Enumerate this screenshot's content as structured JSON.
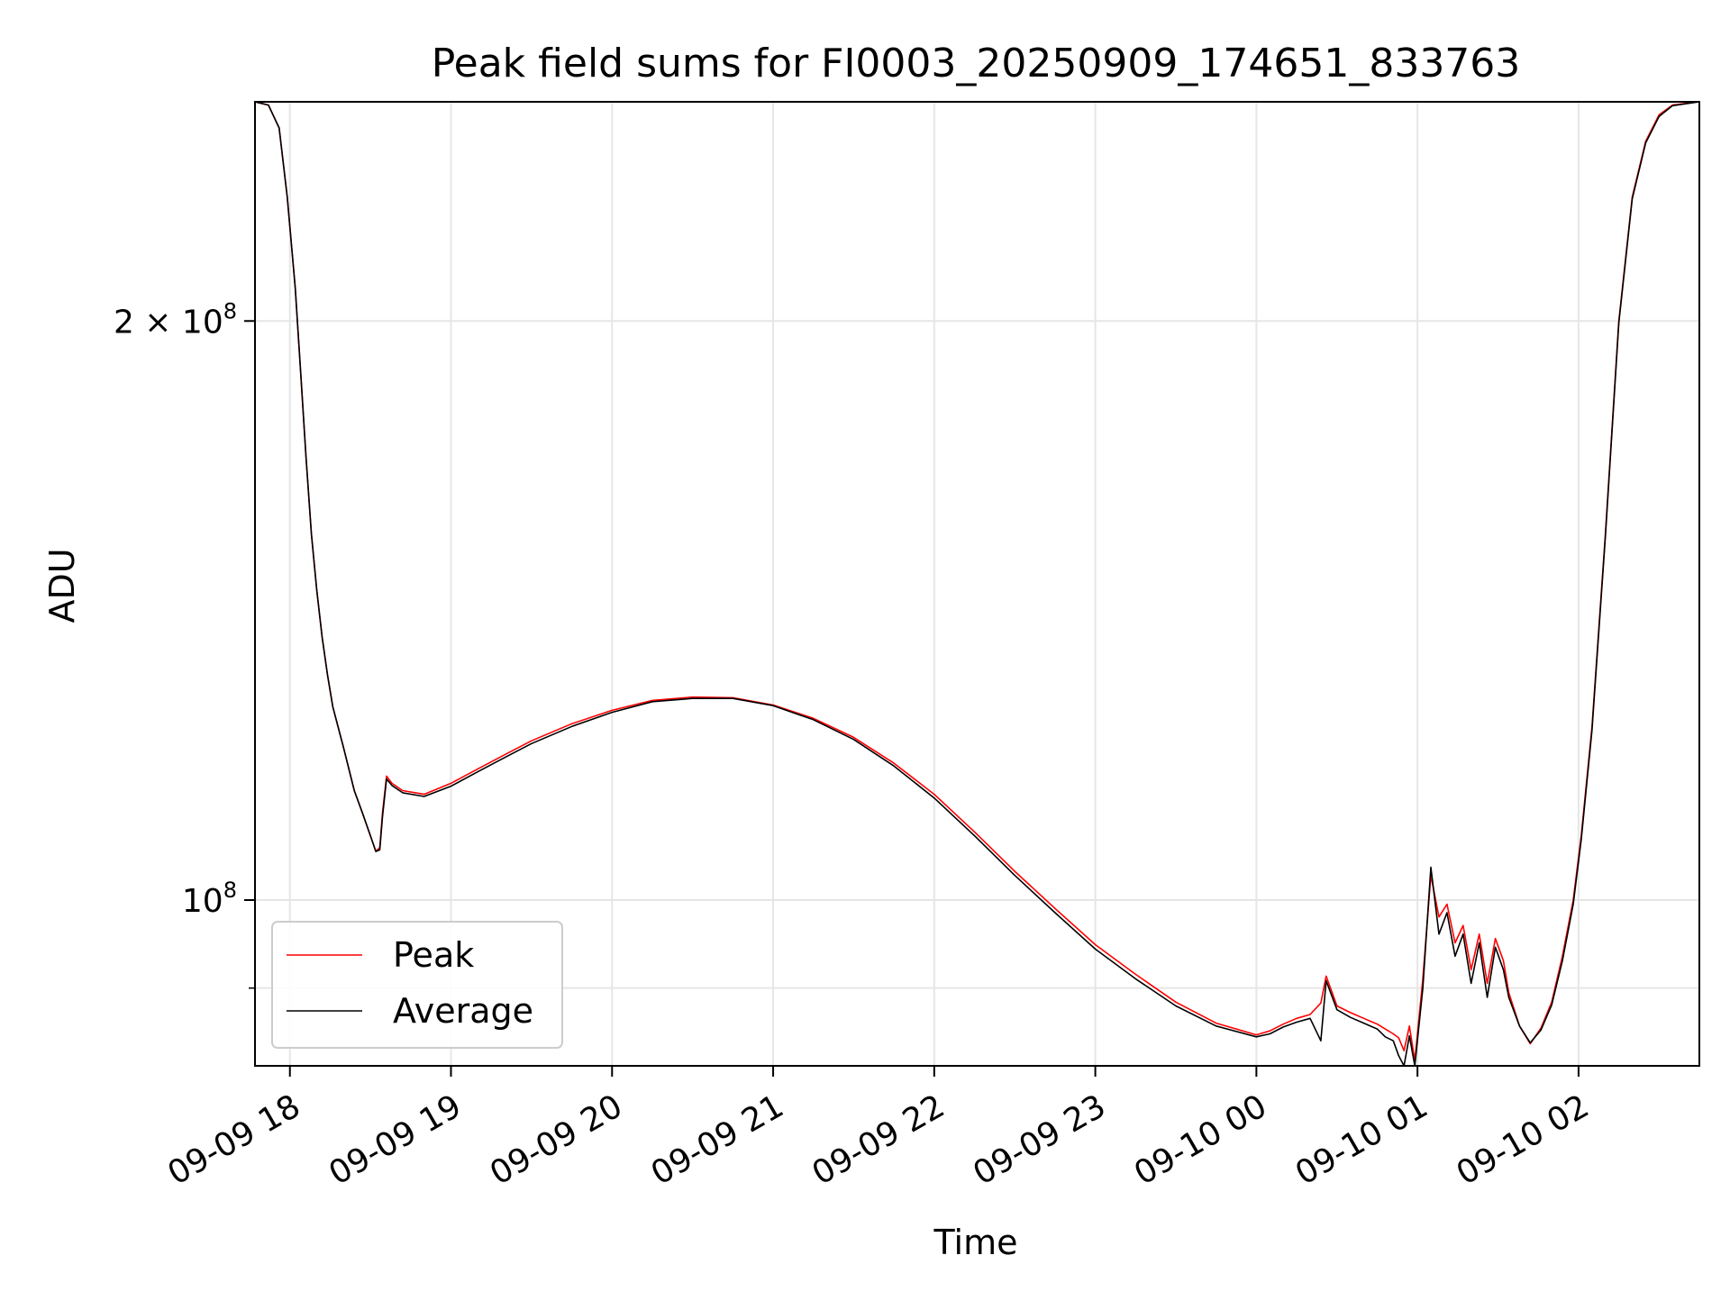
{
  "chart_data": {
    "type": "line",
    "title": "Peak field sums for FI0003_20250909_174651_833763",
    "xlabel": "Time",
    "ylabel": "ADU",
    "x_type": "datetime",
    "xlim": [
      "2025-09-09T17:47:00",
      "2025-09-10T02:45:00"
    ],
    "ylim": [
      82000000,
      260000000
    ],
    "y_scale": "log",
    "x_ticks": [
      {
        "value": "2025-09-09T18:00:00",
        "label": "09-09 18"
      },
      {
        "value": "2025-09-09T19:00:00",
        "label": "09-09 19"
      },
      {
        "value": "2025-09-09T20:00:00",
        "label": "09-09 20"
      },
      {
        "value": "2025-09-09T21:00:00",
        "label": "09-09 21"
      },
      {
        "value": "2025-09-09T22:00:00",
        "label": "09-09 22"
      },
      {
        "value": "2025-09-09T23:00:00",
        "label": "09-09 23"
      },
      {
        "value": "2025-09-10T00:00:00",
        "label": "09-10 00"
      },
      {
        "value": "2025-09-10T01:00:00",
        "label": "09-10 01"
      },
      {
        "value": "2025-09-10T02:00:00",
        "label": "09-10 02"
      }
    ],
    "y_ticks_major": [
      {
        "value": 100000000,
        "base": "10",
        "exp": "8"
      },
      {
        "value": 200000000,
        "base": "2 × 10",
        "exp": "8"
      }
    ],
    "y_ticks_minor": [
      90000000
    ],
    "grid": true,
    "legend": {
      "position": "lower-left"
    },
    "series": [
      {
        "name": "Peak",
        "color": "#ff0000",
        "x": [
          "2025-09-09T17:47:00",
          "2025-09-09T17:52:00",
          "2025-09-09T17:56:00",
          "2025-09-09T17:59:00",
          "2025-09-09T18:02:00",
          "2025-09-09T18:04:00",
          "2025-09-09T18:06:00",
          "2025-09-09T18:08:00",
          "2025-09-09T18:10:00",
          "2025-09-09T18:12:00",
          "2025-09-09T18:14:00",
          "2025-09-09T18:16:00",
          "2025-09-09T18:20:00",
          "2025-09-09T18:24:00",
          "2025-09-09T18:27:00",
          "2025-09-09T18:30:00",
          "2025-09-09T18:32:00",
          "2025-09-09T18:33:30",
          "2025-09-09T18:34:30",
          "2025-09-09T18:36:00",
          "2025-09-09T18:38:00",
          "2025-09-09T18:42:00",
          "2025-09-09T18:50:00",
          "2025-09-09T19:00:00",
          "2025-09-09T19:10:00",
          "2025-09-09T19:20:00",
          "2025-09-09T19:30:00",
          "2025-09-09T19:45:00",
          "2025-09-09T20:00:00",
          "2025-09-09T20:15:00",
          "2025-09-09T20:30:00",
          "2025-09-09T20:45:00",
          "2025-09-09T21:00:00",
          "2025-09-09T21:15:00",
          "2025-09-09T21:30:00",
          "2025-09-09T21:45:00",
          "2025-09-09T22:00:00",
          "2025-09-09T22:15:00",
          "2025-09-09T22:30:00",
          "2025-09-09T22:45:00",
          "2025-09-09T23:00:00",
          "2025-09-09T23:15:00",
          "2025-09-09T23:30:00",
          "2025-09-09T23:45:00",
          "2025-09-10T00:00:00",
          "2025-09-10T00:05:00",
          "2025-09-10T00:10:00",
          "2025-09-10T00:15:00",
          "2025-09-10T00:20:00",
          "2025-09-10T00:24:00",
          "2025-09-10T00:26:00",
          "2025-09-10T00:30:00",
          "2025-09-10T00:35:00",
          "2025-09-10T00:40:00",
          "2025-09-10T00:45:00",
          "2025-09-10T00:48:00",
          "2025-09-10T00:51:00",
          "2025-09-10T00:53:00",
          "2025-09-10T00:55:00",
          "2025-09-10T00:57:00",
          "2025-09-10T00:59:00",
          "2025-09-10T01:02:00",
          "2025-09-10T01:05:00",
          "2025-09-10T01:08:00",
          "2025-09-10T01:11:00",
          "2025-09-10T01:14:00",
          "2025-09-10T01:17:00",
          "2025-09-10T01:20:00",
          "2025-09-10T01:23:00",
          "2025-09-10T01:26:00",
          "2025-09-10T01:29:00",
          "2025-09-10T01:32:00",
          "2025-09-10T01:34:00",
          "2025-09-10T01:38:00",
          "2025-09-10T01:42:00",
          "2025-09-10T01:46:00",
          "2025-09-10T01:50:00",
          "2025-09-10T01:54:00",
          "2025-09-10T01:58:00",
          "2025-09-10T02:01:00",
          "2025-09-10T02:05:00",
          "2025-09-10T02:10:00",
          "2025-09-10T02:15:00",
          "2025-09-10T02:20:00",
          "2025-09-10T02:25:00",
          "2025-09-10T02:30:00",
          "2025-09-10T02:35:00",
          "2025-09-10T02:45:00"
        ],
        "y": [
          260000000,
          259000000,
          252000000,
          232000000,
          208000000,
          188000000,
          170000000,
          155000000,
          145000000,
          137000000,
          131000000,
          126000000,
          120000000,
          114000000,
          111000000,
          108000000,
          106000000,
          106500000,
          111000000,
          116000000,
          115000000,
          114000000,
          113500000,
          115000000,
          117000000,
          119000000,
          121000000,
          123500000,
          125500000,
          127000000,
          127500000,
          127400000,
          126300000,
          124300000,
          121500000,
          117800000,
          113500000,
          108500000,
          103500000,
          99000000,
          94800000,
          91500000,
          88500000,
          86300000,
          85100000,
          85500000,
          86200000,
          86800000,
          87200000,
          88400000,
          91300000,
          88100000,
          87400000,
          86800000,
          86200000,
          85700000,
          85200000,
          84800000,
          83500000,
          86000000,
          82500000,
          91000000,
          103000000,
          98000000,
          99500000,
          95000000,
          97000000,
          92000000,
          96000000,
          90500000,
          95500000,
          93000000,
          89500000,
          86000000,
          84200000,
          85800000,
          88500000,
          93500000,
          100000000,
          108000000,
          123000000,
          155000000,
          200000000,
          232000000,
          248000000,
          256000000,
          259000000,
          260000000
        ]
      },
      {
        "name": "Average",
        "color": "#000000",
        "x": [
          "2025-09-09T17:47:00",
          "2025-09-09T17:52:00",
          "2025-09-09T17:56:00",
          "2025-09-09T17:59:00",
          "2025-09-09T18:02:00",
          "2025-09-09T18:04:00",
          "2025-09-09T18:06:00",
          "2025-09-09T18:08:00",
          "2025-09-09T18:10:00",
          "2025-09-09T18:12:00",
          "2025-09-09T18:14:00",
          "2025-09-09T18:16:00",
          "2025-09-09T18:20:00",
          "2025-09-09T18:24:00",
          "2025-09-09T18:27:00",
          "2025-09-09T18:30:00",
          "2025-09-09T18:32:00",
          "2025-09-09T18:33:30",
          "2025-09-09T18:34:30",
          "2025-09-09T18:36:00",
          "2025-09-09T18:38:00",
          "2025-09-09T18:42:00",
          "2025-09-09T18:50:00",
          "2025-09-09T19:00:00",
          "2025-09-09T19:10:00",
          "2025-09-09T19:20:00",
          "2025-09-09T19:30:00",
          "2025-09-09T19:45:00",
          "2025-09-09T20:00:00",
          "2025-09-09T20:15:00",
          "2025-09-09T20:30:00",
          "2025-09-09T20:45:00",
          "2025-09-09T21:00:00",
          "2025-09-09T21:15:00",
          "2025-09-09T21:30:00",
          "2025-09-09T21:45:00",
          "2025-09-09T22:00:00",
          "2025-09-09T22:15:00",
          "2025-09-09T22:30:00",
          "2025-09-09T22:45:00",
          "2025-09-09T23:00:00",
          "2025-09-09T23:15:00",
          "2025-09-09T23:30:00",
          "2025-09-09T23:45:00",
          "2025-09-10T00:00:00",
          "2025-09-10T00:05:00",
          "2025-09-10T00:10:00",
          "2025-09-10T00:15:00",
          "2025-09-10T00:20:00",
          "2025-09-10T00:24:00",
          "2025-09-10T00:26:00",
          "2025-09-10T00:30:00",
          "2025-09-10T00:35:00",
          "2025-09-10T00:40:00",
          "2025-09-10T00:45:00",
          "2025-09-10T00:48:00",
          "2025-09-10T00:51:00",
          "2025-09-10T00:53:00",
          "2025-09-10T00:55:00",
          "2025-09-10T00:57:00",
          "2025-09-10T00:59:00",
          "2025-09-10T01:02:00",
          "2025-09-10T01:05:00",
          "2025-09-10T01:08:00",
          "2025-09-10T01:11:00",
          "2025-09-10T01:14:00",
          "2025-09-10T01:17:00",
          "2025-09-10T01:20:00",
          "2025-09-10T01:23:00",
          "2025-09-10T01:26:00",
          "2025-09-10T01:29:00",
          "2025-09-10T01:32:00",
          "2025-09-10T01:34:00",
          "2025-09-10T01:38:00",
          "2025-09-10T01:42:00",
          "2025-09-10T01:46:00",
          "2025-09-10T01:50:00",
          "2025-09-10T01:54:00",
          "2025-09-10T01:58:00",
          "2025-09-10T02:01:00",
          "2025-09-10T02:05:00",
          "2025-09-10T02:10:00",
          "2025-09-10T02:15:00",
          "2025-09-10T02:20:00",
          "2025-09-10T02:25:00",
          "2025-09-10T02:30:00",
          "2025-09-10T02:35:00",
          "2025-09-10T02:45:00"
        ],
        "y": [
          260000000,
          259000000,
          252000000,
          232000000,
          208000000,
          188000000,
          170000000,
          155000000,
          145000000,
          137000000,
          131000000,
          126000000,
          120000000,
          114000000,
          111000000,
          108000000,
          106000000,
          106200000,
          110500000,
          115600000,
          114700000,
          113700000,
          113200000,
          114600000,
          116600000,
          118600000,
          120600000,
          123100000,
          125200000,
          126800000,
          127300000,
          127300000,
          126200000,
          124100000,
          121200000,
          117400000,
          113000000,
          108000000,
          103000000,
          98500000,
          94300000,
          91000000,
          88100000,
          86000000,
          84900000,
          85200000,
          85900000,
          86400000,
          86800000,
          84500000,
          90800000,
          87700000,
          86900000,
          86300000,
          85700000,
          84900000,
          84500000,
          83000000,
          82000000,
          85000000,
          82000000,
          90000000,
          104000000,
          96000000,
          98500000,
          93500000,
          96000000,
          90500000,
          95000000,
          89000000,
          94500000,
          92000000,
          89000000,
          86000000,
          84300000,
          85600000,
          88200000,
          93000000,
          99500000,
          107500000,
          122500000,
          154500000,
          199500000,
          231500000,
          247500000,
          255500000,
          258800000,
          260000000
        ]
      }
    ]
  }
}
